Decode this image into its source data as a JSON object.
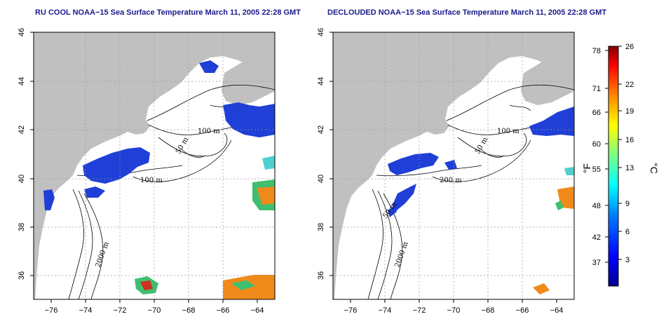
{
  "left_panel": {
    "title": "RU COOL NOAA−15 Sea Surface Temperature March 11, 2005 22:28 GMT",
    "contour_labels": [
      "100 m",
      "50 m",
      "100 m",
      "2000 m"
    ]
  },
  "right_panel": {
    "title": "DECLOUDED NOAA−15 Sea Surface Temperature March 11, 2005 22:28 GMT",
    "contour_labels": [
      "100 m",
      "50 m",
      "200 m",
      "2000 m",
      "50 m"
    ]
  },
  "axes": {
    "x_ticks": [
      "−76",
      "−74",
      "−72",
      "−70",
      "−68",
      "−66",
      "−64"
    ],
    "y_ticks": [
      "46",
      "44",
      "42",
      "40",
      "38",
      "36"
    ]
  },
  "colorbar": {
    "fahrenheit_ticks": [
      "78",
      "71",
      "66",
      "60",
      "55",
      "48",
      "42",
      "37"
    ],
    "celsius_ticks": [
      "26",
      "22",
      "19",
      "16",
      "13",
      "9",
      "6",
      "3"
    ],
    "fahrenheit_unit": "°F",
    "celsius_unit": "°C",
    "colors": [
      "#00008f",
      "#0000ff",
      "#0080ff",
      "#00ffff",
      "#80ff80",
      "#ffff00",
      "#ff8000",
      "#ff0000",
      "#800000"
    ]
  },
  "colors": {
    "land": "#c0c0c0",
    "water": "#ffffff",
    "cold_sst": "#1f3fd6",
    "warm_sst": "#f08a1a"
  }
}
